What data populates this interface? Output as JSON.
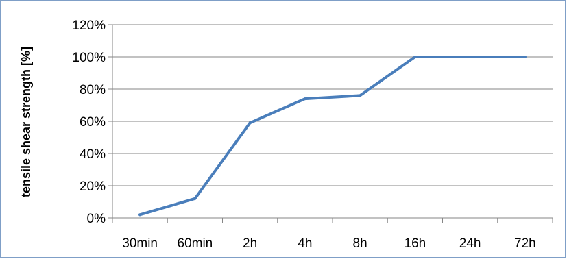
{
  "chart_data": {
    "type": "line",
    "ylabel": "tensile shear strength [%]",
    "xlabel": "",
    "categories": [
      "30min",
      "60min",
      "2h",
      "4h",
      "8h",
      "16h",
      "24h",
      "72h"
    ],
    "ylim": [
      0,
      1.2
    ],
    "ytick_values": [
      0,
      0.2,
      0.4,
      0.6,
      0.8,
      1.0,
      1.2
    ],
    "ytick_labels": [
      "0%",
      "20%",
      "40%",
      "60%",
      "80%",
      "100%",
      "120%"
    ],
    "grid": "horizontal",
    "series": [
      {
        "values": [
          0.02,
          0.12,
          0.59,
          0.74,
          0.76,
          1.0,
          1.0,
          1.0
        ]
      }
    ],
    "colors": {
      "line": "#4a7ebb",
      "grid": "#868686",
      "frame": "#7f9fc7"
    }
  }
}
